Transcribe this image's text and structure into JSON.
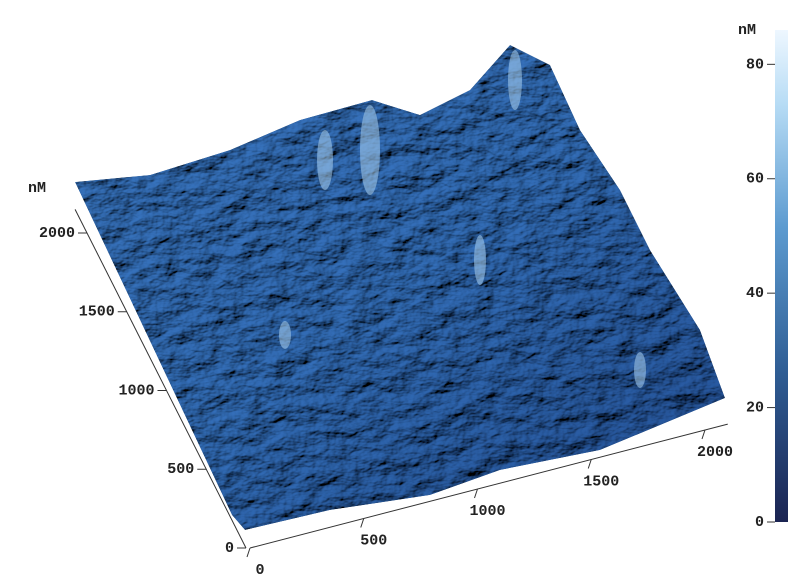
{
  "chart_data": {
    "type": "surface",
    "xlim": [
      0,
      2100
    ],
    "xticks": [
      0,
      500,
      1000,
      1500,
      2000
    ],
    "ylabel": "nM",
    "ylim": [
      0,
      2150
    ],
    "yticks": [
      0,
      500,
      1000,
      1500,
      2000
    ],
    "zlabel": "nM",
    "zlim": [
      0,
      86
    ],
    "zticks": [
      0,
      20,
      40,
      60,
      80
    ]
  }
}
